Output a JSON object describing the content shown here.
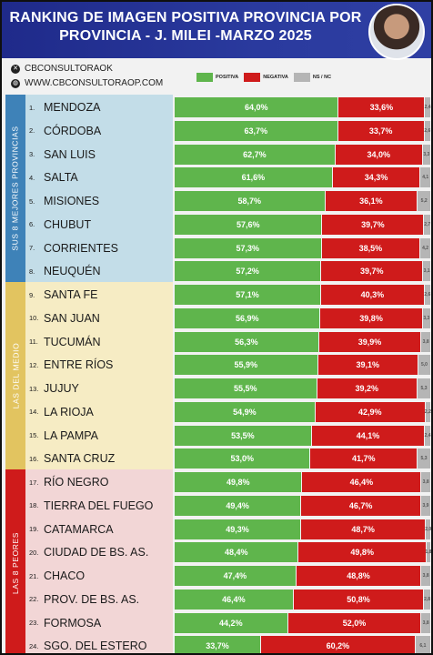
{
  "title": "RANKING DE IMAGEN POSITIVA PROVINCIA POR PROVINCIA - J. MILEI -MARZO 2025",
  "header": {
    "social_handle": "CBCONSULTORAOK",
    "website": "WWW.CBCONSULTORAOP.COM"
  },
  "legend": {
    "positiva": "POSITIVA",
    "negativa": "NEGATIVA",
    "ns_nc": "NS / NC"
  },
  "colors": {
    "positiva": "#5fb54c",
    "negativa": "#cf1b1b",
    "ns_nc": "#b5b5b5",
    "title_band": "#2a3a9e"
  },
  "groups": [
    {
      "label": "SUS 8 MEJORES PROVINCIAS",
      "from_rank": 1,
      "to_rank": 8,
      "color": "#c3dde8",
      "label_color": "#3e82b8"
    },
    {
      "label": "LAS DEL MEDIO",
      "from_rank": 9,
      "to_rank": 16,
      "color": "#f6ecc4",
      "label_color": "#e2c460"
    },
    {
      "label": "LAS 8 PEORES",
      "from_rank": 17,
      "to_rank": 24,
      "color": "#f2d6d6",
      "label_color": "#cf1b1b"
    }
  ],
  "chart_data": {
    "type": "bar",
    "stacked": true,
    "orientation": "horizontal",
    "xlim": [
      0,
      100
    ],
    "categories": [
      "MENDOZA",
      "CÓRDOBA",
      "SAN LUIS",
      "SALTA",
      "MISIONES",
      "CHUBUT",
      "CORRIENTES",
      "NEUQUÉN",
      "SANTA FE",
      "SAN JUAN",
      "TUCUMÁN",
      "ENTRE RÍOS",
      "JUJUY",
      "LA RIOJA",
      "LA PAMPA",
      "SANTA CRUZ",
      "RÍO NEGRO",
      "TIERRA DEL FUEGO",
      "CATAMARCA",
      "CIUDAD DE BS. AS.",
      "CHACO",
      "PROV. DE BS. AS.",
      "FORMOSA",
      "SGO. DEL ESTERO"
    ],
    "series": [
      {
        "name": "POSITIVA",
        "values": [
          64.0,
          63.7,
          62.7,
          61.6,
          58.7,
          57.6,
          57.3,
          57.2,
          57.1,
          56.9,
          56.3,
          55.9,
          55.5,
          54.9,
          53.5,
          53.0,
          49.8,
          49.4,
          49.3,
          48.4,
          47.4,
          46.4,
          44.2,
          33.7
        ],
        "labels": [
          "64,0%",
          "63,7%",
          "62,7%",
          "61,6%",
          "58,7%",
          "57,6%",
          "57,3%",
          "57,2%",
          "57,1%",
          "56,9%",
          "56,3%",
          "55,9%",
          "55,5%",
          "54,9%",
          "53,5%",
          "53,0%",
          "49,8%",
          "49,4%",
          "49,3%",
          "48,4%",
          "47,4%",
          "46,4%",
          "44,2%",
          "33,7%"
        ]
      },
      {
        "name": "NEGATIVA",
        "values": [
          33.6,
          33.7,
          34.0,
          34.3,
          36.1,
          39.7,
          38.5,
          39.7,
          40.3,
          39.8,
          39.9,
          39.1,
          39.2,
          42.9,
          44.1,
          41.7,
          46.4,
          46.7,
          48.7,
          49.8,
          48.8,
          50.8,
          52.0,
          60.2
        ],
        "labels": [
          "33,6%",
          "33,7%",
          "34,0%",
          "34,3%",
          "36,1%",
          "39,7%",
          "38,5%",
          "39,7%",
          "40,3%",
          "39,8%",
          "39,9%",
          "39,1%",
          "39,2%",
          "42,9%",
          "44,1%",
          "41,7%",
          "46,4%",
          "46,7%",
          "48,7%",
          "49,8%",
          "48,8%",
          "50,8%",
          "52,0%",
          "60,2%"
        ]
      },
      {
        "name": "NS / NC",
        "values": [
          2.4,
          2.6,
          3.3,
          4.1,
          5.2,
          2.7,
          4.2,
          3.1,
          2.6,
          3.3,
          3.8,
          5.0,
          5.3,
          2.2,
          2.4,
          5.3,
          3.8,
          3.9,
          2.0,
          1.8,
          3.8,
          2.8,
          3.8,
          6.1
        ],
        "labels": [
          "2,4",
          "2,6",
          "3,3",
          "4,1",
          "5,2",
          "2,7",
          "4,2",
          "3,1",
          "2,6",
          "3,3",
          "3,8",
          "5,0",
          "5,3",
          "2,2",
          "2,4",
          "5,3",
          "3,8",
          "3,9",
          "2,0",
          "1,8",
          "3,8",
          "2,8",
          "3,8",
          "6,1"
        ]
      }
    ]
  }
}
